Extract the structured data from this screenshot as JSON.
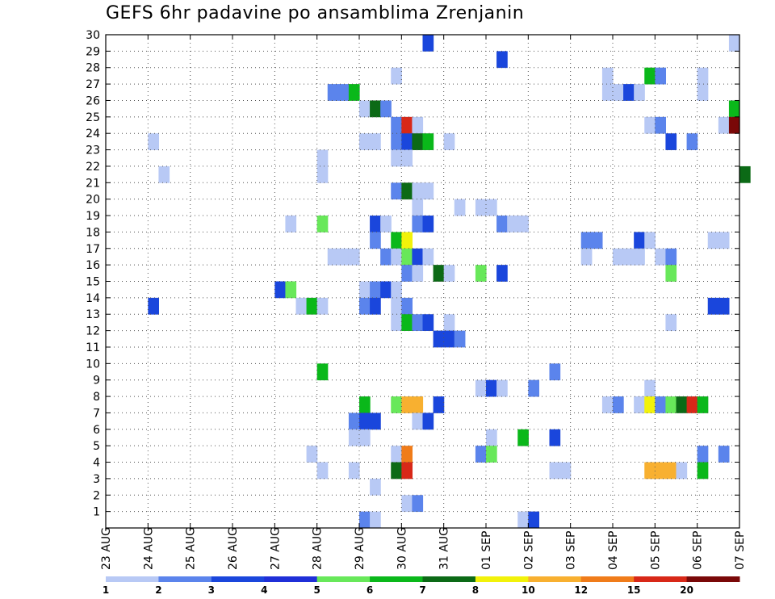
{
  "title": "GEFS 6hr padavine po ansamblima Zrenjanin",
  "chart_data": {
    "type": "heatmap",
    "title": "GEFS 6hr padavine po ansamblima Zrenjanin",
    "xlabel": "",
    "ylabel": "",
    "x_tick_labels": [
      "23 AUG",
      "24 AUG",
      "25 AUG",
      "26 AUG",
      "27 AUG",
      "28 AUG",
      "29 AUG",
      "30 AUG",
      "31 AUG",
      "01 SEP",
      "02 SEP",
      "03 SEP",
      "04 SEP",
      "05 SEP",
      "06 SEP",
      "07 SEP"
    ],
    "x_range_days": [
      0,
      15
    ],
    "y_range": [
      0,
      30
    ],
    "y_ticks": [
      1,
      2,
      3,
      4,
      5,
      6,
      7,
      8,
      9,
      10,
      11,
      12,
      13,
      14,
      15,
      16,
      17,
      18,
      19,
      20,
      21,
      22,
      23,
      24,
      25,
      26,
      27,
      28,
      29,
      30
    ],
    "grid": true,
    "x_unit": "days since 23 AUG (6-hour steps)",
    "color_scale": {
      "levels": [
        "1",
        "2",
        "3",
        "4",
        "5",
        "6",
        "7",
        "8",
        "10",
        "12",
        "15",
        "20"
      ],
      "colors": [
        "#b8c9f5",
        "#5b84ec",
        "#1a46dc",
        "#1f2fd8",
        "#68e85a",
        "#0ab81a",
        "#0c6a16",
        "#f2f20a",
        "#f8b030",
        "#f07c1a",
        "#d82818",
        "#7a0808"
      ]
    },
    "cells": [
      [
        29,
        7.5,
        3
      ],
      [
        29,
        14.75,
        1
      ],
      [
        28,
        9.25,
        3
      ],
      [
        27,
        6.75,
        1
      ],
      [
        27,
        11.75,
        1
      ],
      [
        27,
        12.75,
        6
      ],
      [
        27,
        13.0,
        2
      ],
      [
        27,
        14.0,
        1
      ],
      [
        26,
        5.25,
        2
      ],
      [
        26,
        5.5,
        2
      ],
      [
        26,
        5.75,
        6
      ],
      [
        26,
        11.75,
        1
      ],
      [
        26,
        12.0,
        1
      ],
      [
        26,
        12.25,
        3
      ],
      [
        26,
        12.5,
        1
      ],
      [
        26,
        14.0,
        1
      ],
      [
        25,
        6.0,
        1
      ],
      [
        25,
        6.25,
        7
      ],
      [
        25,
        6.5,
        2
      ],
      [
        25,
        14.75,
        6
      ],
      [
        24,
        6.75,
        2
      ],
      [
        24,
        7.0,
        11
      ],
      [
        24,
        7.25,
        1
      ],
      [
        24,
        12.75,
        1
      ],
      [
        24,
        13.0,
        2
      ],
      [
        24,
        14.5,
        1
      ],
      [
        24,
        14.75,
        12
      ],
      [
        23,
        1.0,
        1
      ],
      [
        23,
        6.0,
        1
      ],
      [
        23,
        6.25,
        1
      ],
      [
        23,
        6.75,
        2
      ],
      [
        23,
        7.0,
        3
      ],
      [
        23,
        7.25,
        7
      ],
      [
        23,
        7.5,
        6
      ],
      [
        23,
        8.0,
        1
      ],
      [
        23,
        13.25,
        3
      ],
      [
        23,
        13.75,
        2
      ],
      [
        22,
        5.0,
        1
      ],
      [
        22,
        6.75,
        1
      ],
      [
        22,
        7.0,
        1
      ],
      [
        21,
        1.25,
        1
      ],
      [
        21,
        5.0,
        1
      ],
      [
        21,
        15.0,
        7
      ],
      [
        20,
        6.75,
        2
      ],
      [
        20,
        7.0,
        7
      ],
      [
        20,
        7.25,
        1
      ],
      [
        20,
        7.5,
        1
      ],
      [
        19,
        7.25,
        1
      ],
      [
        19,
        8.25,
        1
      ],
      [
        19,
        8.75,
        1
      ],
      [
        19,
        9.0,
        1
      ],
      [
        18,
        4.25,
        1
      ],
      [
        18,
        5.0,
        5
      ],
      [
        18,
        6.25,
        3
      ],
      [
        18,
        6.5,
        1
      ],
      [
        18,
        7.25,
        2
      ],
      [
        18,
        7.5,
        3
      ],
      [
        18,
        9.25,
        2
      ],
      [
        18,
        9.5,
        1
      ],
      [
        18,
        9.75,
        1
      ],
      [
        17,
        6.25,
        2
      ],
      [
        17,
        6.75,
        6
      ],
      [
        17,
        7.0,
        8
      ],
      [
        17,
        11.25,
        2
      ],
      [
        17,
        11.5,
        2
      ],
      [
        17,
        12.5,
        3
      ],
      [
        17,
        12.75,
        1
      ],
      [
        17,
        14.25,
        1
      ],
      [
        17,
        14.5,
        1
      ],
      [
        16,
        5.25,
        1
      ],
      [
        16,
        5.5,
        1
      ],
      [
        16,
        5.75,
        1
      ],
      [
        16,
        6.5,
        2
      ],
      [
        16,
        6.75,
        1
      ],
      [
        16,
        7.0,
        5
      ],
      [
        16,
        7.25,
        3
      ],
      [
        16,
        7.5,
        1
      ],
      [
        16,
        11.25,
        1
      ],
      [
        16,
        12.0,
        1
      ],
      [
        16,
        12.25,
        1
      ],
      [
        16,
        12.5,
        1
      ],
      [
        16,
        13.0,
        1
      ],
      [
        16,
        13.25,
        2
      ],
      [
        15,
        7.0,
        2
      ],
      [
        15,
        7.25,
        1
      ],
      [
        15,
        7.75,
        7
      ],
      [
        15,
        8.0,
        1
      ],
      [
        15,
        8.75,
        5
      ],
      [
        15,
        9.25,
        3
      ],
      [
        15,
        13.25,
        5
      ],
      [
        14,
        4.0,
        3
      ],
      [
        14,
        4.25,
        5
      ],
      [
        14,
        6.0,
        1
      ],
      [
        14,
        6.25,
        2
      ],
      [
        14,
        6.5,
        3
      ],
      [
        14,
        6.75,
        1
      ],
      [
        13,
        1.0,
        3
      ],
      [
        13,
        4.5,
        1
      ],
      [
        13,
        4.75,
        6
      ],
      [
        13,
        5.0,
        1
      ],
      [
        13,
        6.0,
        2
      ],
      [
        13,
        6.25,
        3
      ],
      [
        13,
        6.75,
        1
      ],
      [
        13,
        7.0,
        2
      ],
      [
        13,
        14.25,
        3
      ],
      [
        13,
        14.5,
        3
      ],
      [
        12,
        6.75,
        1
      ],
      [
        12,
        7.0,
        6
      ],
      [
        12,
        7.25,
        2
      ],
      [
        12,
        7.5,
        3
      ],
      [
        12,
        8.0,
        1
      ],
      [
        12,
        13.25,
        1
      ],
      [
        11,
        7.75,
        3
      ],
      [
        11,
        8.0,
        3
      ],
      [
        11,
        8.25,
        2
      ],
      [
        9,
        5.0,
        6
      ],
      [
        9,
        10.5,
        2
      ],
      [
        8,
        8.75,
        1
      ],
      [
        8,
        9.0,
        3
      ],
      [
        8,
        9.25,
        1
      ],
      [
        8,
        10.0,
        2
      ],
      [
        8,
        12.75,
        1
      ],
      [
        7,
        6.0,
        6
      ],
      [
        7,
        6.75,
        5
      ],
      [
        7,
        7.0,
        9
      ],
      [
        7,
        7.25,
        9
      ],
      [
        7,
        7.75,
        3
      ],
      [
        7,
        11.75,
        1
      ],
      [
        7,
        12.0,
        2
      ],
      [
        7,
        12.5,
        1
      ],
      [
        7,
        12.75,
        8
      ],
      [
        7,
        13.0,
        2
      ],
      [
        7,
        13.25,
        5
      ],
      [
        7,
        13.5,
        7
      ],
      [
        7,
        13.75,
        11
      ],
      [
        7,
        14.0,
        6
      ],
      [
        6,
        5.75,
        2
      ],
      [
        6,
        6.0,
        3
      ],
      [
        6,
        6.25,
        3
      ],
      [
        6,
        7.25,
        1
      ],
      [
        6,
        7.5,
        3
      ],
      [
        5,
        5.75,
        1
      ],
      [
        5,
        6.0,
        1
      ],
      [
        5,
        9.0,
        1
      ],
      [
        5,
        9.75,
        6
      ],
      [
        5,
        10.5,
        3
      ],
      [
        4,
        4.75,
        1
      ],
      [
        4,
        6.75,
        1
      ],
      [
        4,
        7.0,
        10
      ],
      [
        4,
        8.75,
        2
      ],
      [
        4,
        9.0,
        5
      ],
      [
        4,
        14.0,
        2
      ],
      [
        4,
        14.5,
        2
      ],
      [
        3,
        5.0,
        1
      ],
      [
        3,
        5.75,
        1
      ],
      [
        3,
        6.75,
        7
      ],
      [
        3,
        7.0,
        11
      ],
      [
        3,
        10.5,
        1
      ],
      [
        3,
        10.75,
        1
      ],
      [
        3,
        12.75,
        9
      ],
      [
        3,
        13.0,
        9
      ],
      [
        3,
        13.25,
        9
      ],
      [
        3,
        13.5,
        1
      ],
      [
        3,
        14.0,
        6
      ],
      [
        2,
        6.25,
        1
      ],
      [
        1,
        7.0,
        1
      ],
      [
        1,
        7.25,
        2
      ],
      [
        0,
        6.0,
        2
      ],
      [
        0,
        6.25,
        1
      ],
      [
        0,
        9.75,
        1
      ],
      [
        0,
        10.0,
        3
      ]
    ]
  }
}
